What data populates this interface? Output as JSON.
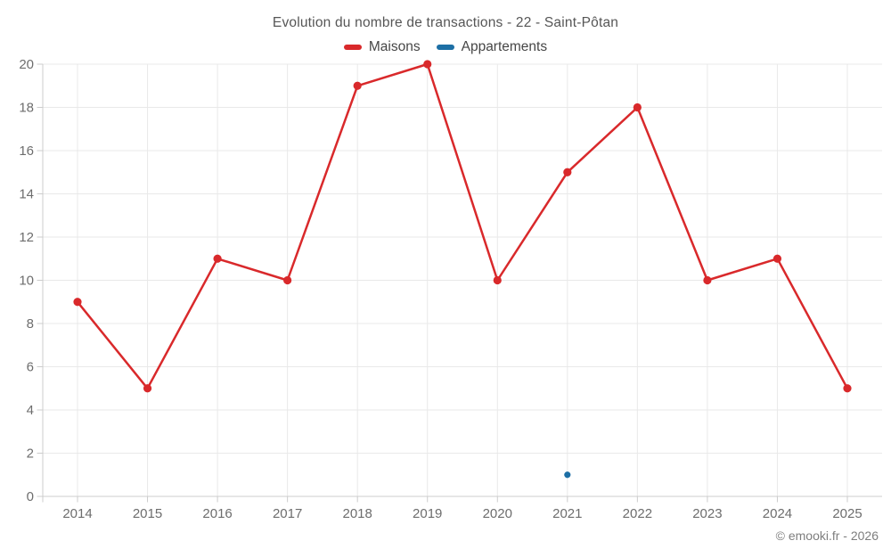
{
  "title": "Evolution du nombre de transactions - 22 - Saint-Pôtan",
  "legend": {
    "items": [
      {
        "label": "Maisons",
        "color": "#d9292b"
      },
      {
        "label": "Appartements",
        "color": "#1d6fa5"
      }
    ]
  },
  "footer": {
    "copyright": "© emooki.fr - 2026"
  },
  "colors": {
    "grid": "#e9e9e9",
    "axis": "#cccccc",
    "tick_label": "#6d6d6d",
    "title_text": "#565656",
    "legend_text": "#464646",
    "copyright_text": "#7e7e7e"
  },
  "chart_data": {
    "type": "line",
    "title": "Evolution du nombre de transactions - 22 - Saint-Pôtan",
    "categories": [
      "2014",
      "2015",
      "2016",
      "2017",
      "2018",
      "2019",
      "2020",
      "2021",
      "2022",
      "2023",
      "2024",
      "2025"
    ],
    "series": [
      {
        "name": "Maisons",
        "color": "#d9292b",
        "values": [
          9,
          5,
          11,
          10,
          19,
          20,
          10,
          15,
          18,
          10,
          11,
          5
        ]
      },
      {
        "name": "Appartements",
        "color": "#1d6fa5",
        "values": [
          null,
          null,
          null,
          null,
          null,
          null,
          null,
          1,
          null,
          null,
          null,
          null
        ]
      }
    ],
    "xlabel": "",
    "ylabel": "",
    "ylim": [
      0,
      20
    ],
    "ytick_step": 2,
    "grid": true,
    "legend_position": "top"
  }
}
